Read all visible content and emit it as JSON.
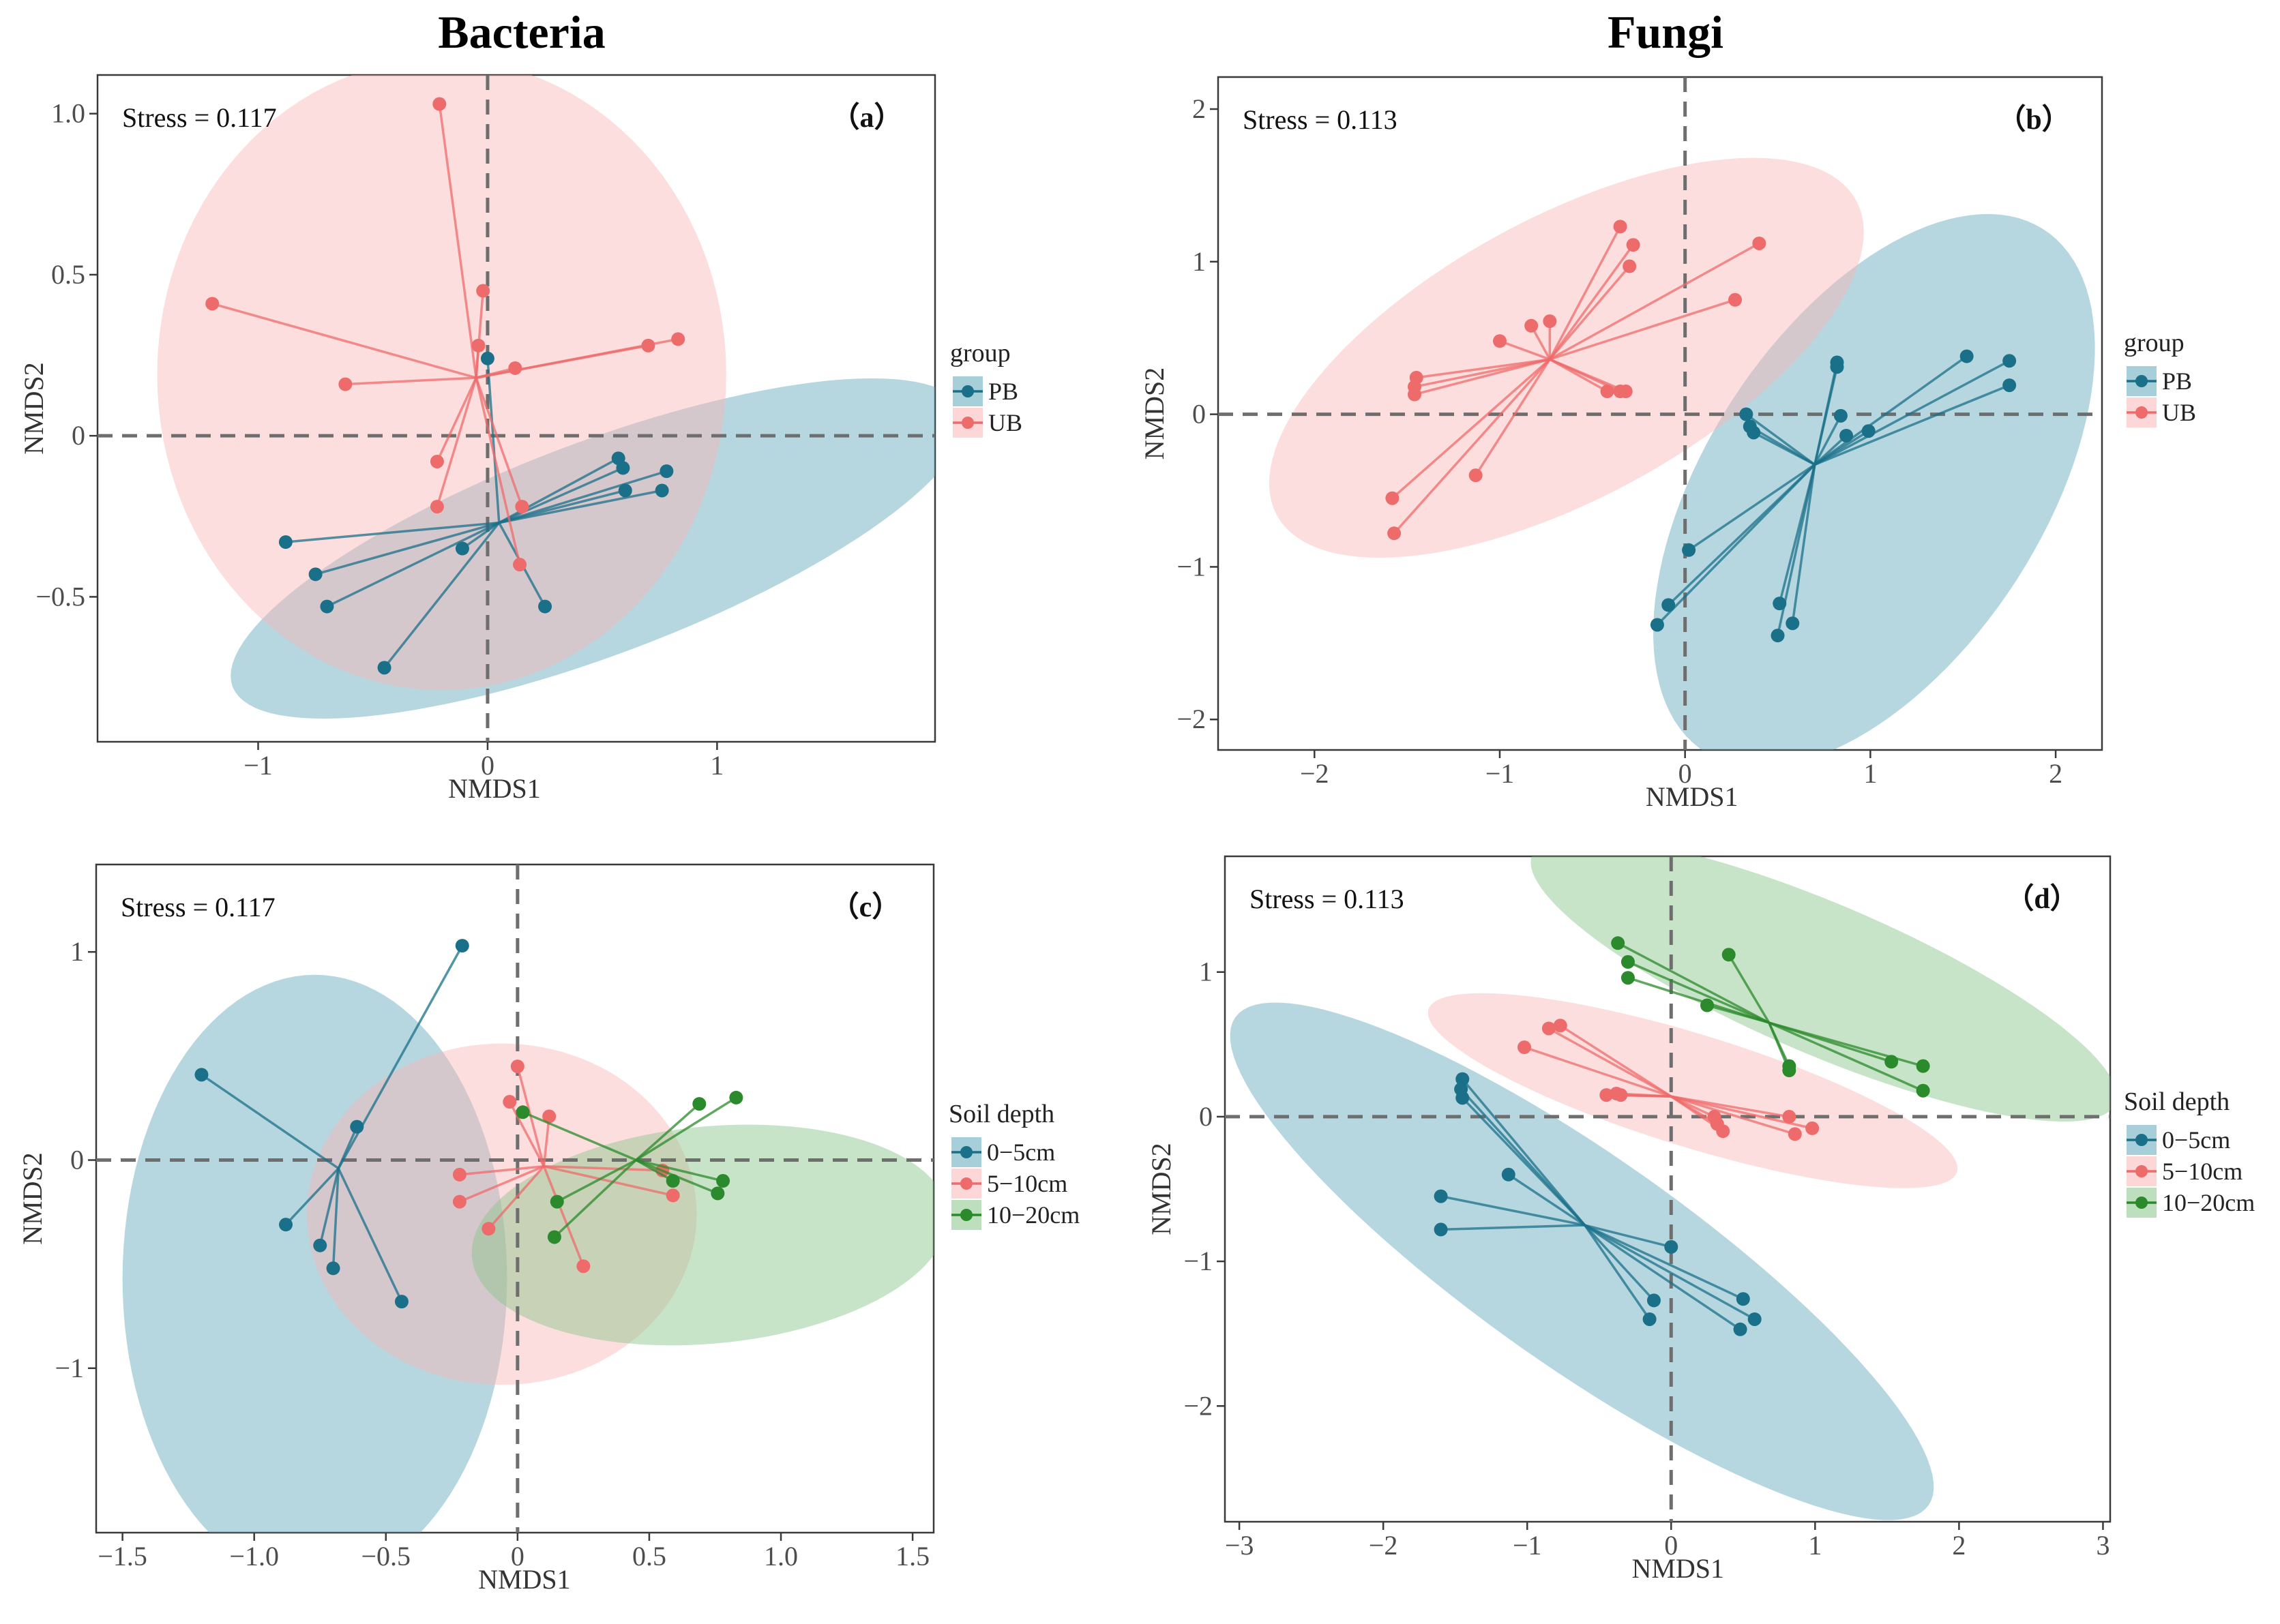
{
  "titles": {
    "left": "Bacteria",
    "right": "Fungi"
  },
  "chart_data": [
    {
      "id": "a",
      "type": "scatter",
      "tag": "（a）",
      "stress": "Stress = 0.117",
      "xlabel": "NMDS1",
      "ylabel": "NMDS2",
      "xlim": [
        -1.7,
        1.95
      ],
      "ylim": [
        -0.95,
        1.12
      ],
      "xticks": [
        -1,
        0,
        1
      ],
      "xtick_labels": [
        "−1",
        "0",
        "1"
      ],
      "yticks": [
        -0.5,
        0,
        0.5,
        1.0
      ],
      "ytick_labels": [
        "−0.5",
        "0",
        "0.5",
        "1.0"
      ],
      "legend": {
        "title": "group",
        "position": "right"
      },
      "groups": [
        {
          "name": "PB",
          "color": "#1b7089",
          "fill": "#5ea7ba",
          "ellipse": {
            "center": [
              0.48,
              -0.35
            ],
            "rx": 1.65,
            "ry": 0.34,
            "angle_deg": 14.5
          },
          "centroid": [
            0.05,
            -0.27
          ],
          "points": [
            [
              0.0,
              0.24
            ],
            [
              0.57,
              -0.07
            ],
            [
              0.59,
              -0.1
            ],
            [
              0.78,
              -0.11
            ],
            [
              0.6,
              -0.17
            ],
            [
              0.76,
              -0.17
            ],
            [
              -0.88,
              -0.33
            ],
            [
              -0.75,
              -0.43
            ],
            [
              -0.7,
              -0.53
            ],
            [
              -0.11,
              -0.35
            ],
            [
              0.25,
              -0.53
            ],
            [
              -0.45,
              -0.72
            ]
          ]
        },
        {
          "name": "UB",
          "color": "#ee6b6b",
          "fill": "#fbb6b6",
          "ellipse": {
            "center": [
              -0.2,
              0.19
            ],
            "rx": 1.24,
            "ry": 0.98,
            "angle_deg": 0
          },
          "centroid": [
            -0.05,
            0.18
          ],
          "points": [
            [
              -0.21,
              1.03
            ],
            [
              -0.02,
              0.45
            ],
            [
              -1.2,
              0.41
            ],
            [
              -0.04,
              0.28
            ],
            [
              0.7,
              0.28
            ],
            [
              0.83,
              0.3
            ],
            [
              0.12,
              0.21
            ],
            [
              -0.62,
              0.16
            ],
            [
              -0.22,
              -0.08
            ],
            [
              -0.22,
              -0.22
            ],
            [
              0.15,
              -0.22
            ],
            [
              0.14,
              -0.4
            ]
          ]
        }
      ]
    },
    {
      "id": "b",
      "type": "scatter",
      "tag": "（b）",
      "stress": "Stress = 0.113",
      "xlabel": "NMDS1",
      "ylabel": "NMDS2",
      "xlim": [
        -2.52,
        2.25
      ],
      "ylim": [
        -2.2,
        2.21
      ],
      "xticks": [
        -2,
        -1,
        0,
        1,
        2
      ],
      "xtick_labels": [
        "−2",
        "−1",
        "0",
        "1",
        "2"
      ],
      "yticks": [
        -2,
        -1,
        0,
        1,
        2
      ],
      "ytick_labels": [
        "−2",
        "−1",
        "0",
        "1",
        "2"
      ],
      "legend": {
        "title": "group",
        "position": "right"
      },
      "groups": [
        {
          "name": "PB",
          "color": "#1b7089",
          "fill": "#5ea7ba",
          "ellipse": {
            "center": [
              1.02,
              -0.5
            ],
            "rx": 1.95,
            "ry": 0.95,
            "angle_deg": 65
          },
          "centroid": [
            0.7,
            -0.33
          ],
          "points": [
            [
              0.82,
              0.34
            ],
            [
              0.82,
              0.31
            ],
            [
              1.52,
              0.38
            ],
            [
              1.75,
              0.35
            ],
            [
              1.75,
              0.19
            ],
            [
              0.33,
              0.0
            ],
            [
              0.35,
              -0.08
            ],
            [
              0.37,
              -0.12
            ],
            [
              0.84,
              -0.01
            ],
            [
              0.87,
              -0.14
            ],
            [
              0.99,
              -0.11
            ],
            [
              0.02,
              -0.89
            ],
            [
              -0.09,
              -1.25
            ],
            [
              -0.15,
              -1.38
            ],
            [
              0.51,
              -1.24
            ],
            [
              0.5,
              -1.45
            ],
            [
              0.58,
              -1.37
            ]
          ]
        },
        {
          "name": "UB",
          "color": "#ee6b6b",
          "fill": "#fbb6b6",
          "ellipse": {
            "center": [
              -0.64,
              0.37
            ],
            "rx": 1.88,
            "ry": 0.87,
            "angle_deg": 36
          },
          "centroid": [
            -0.73,
            0.36
          ],
          "points": [
            [
              -0.35,
              1.23
            ],
            [
              -0.28,
              1.11
            ],
            [
              -0.3,
              0.97
            ],
            [
              0.4,
              1.12
            ],
            [
              0.27,
              0.75
            ],
            [
              -0.83,
              0.58
            ],
            [
              -0.73,
              0.61
            ],
            [
              -1.0,
              0.48
            ],
            [
              -1.45,
              0.24
            ],
            [
              -1.46,
              0.18
            ],
            [
              -1.46,
              0.13
            ],
            [
              -0.42,
              0.15
            ],
            [
              -0.35,
              0.15
            ],
            [
              -0.32,
              0.15
            ],
            [
              -1.13,
              -0.4
            ],
            [
              -1.58,
              -0.55
            ],
            [
              -1.57,
              -0.78
            ]
          ]
        }
      ]
    },
    {
      "id": "c",
      "type": "scatter",
      "tag": "（c）",
      "stress": "Stress = 0.117",
      "xlabel": "NMDS1",
      "ylabel": "NMDS2",
      "xlim": [
        -1.6,
        1.58
      ],
      "ylim": [
        -1.79,
        1.42
      ],
      "xticks": [
        -1.5,
        -1.0,
        -0.5,
        0,
        0.5,
        1.0,
        1.5
      ],
      "xtick_labels": [
        "−1.5",
        "−1.0",
        "−0.5",
        "0",
        "0.5",
        "1.0",
        "1.5"
      ],
      "yticks": [
        -1,
        0,
        1
      ],
      "ytick_labels": [
        "−1",
        "0",
        "1"
      ],
      "legend": {
        "title": "Soil depth",
        "position": "right"
      },
      "groups": [
        {
          "name": "0−5cm",
          "color": "#1b7089",
          "fill": "#5ea7ba",
          "ellipse": {
            "center": [
              -0.77,
              -0.57
            ],
            "rx": 0.73,
            "ry": 1.46,
            "angle_deg": 0
          },
          "centroid": [
            -0.68,
            -0.04
          ],
          "points": [
            [
              -0.21,
              1.03
            ],
            [
              -1.2,
              0.41
            ],
            [
              -0.61,
              0.16
            ],
            [
              -0.88,
              -0.31
            ],
            [
              -0.75,
              -0.41
            ],
            [
              -0.7,
              -0.52
            ],
            [
              -0.44,
              -0.68
            ]
          ]
        },
        {
          "name": "5−10cm",
          "color": "#ee6b6b",
          "fill": "#fbb6b6",
          "ellipse": {
            "center": [
              -0.06,
              -0.26
            ],
            "rx": 0.74,
            "ry": 0.82,
            "angle_deg": 0
          },
          "centroid": [
            0.1,
            -0.03
          ],
          "points": [
            [
              0.0,
              0.45
            ],
            [
              -0.03,
              0.28
            ],
            [
              0.12,
              0.21
            ],
            [
              -0.22,
              -0.07
            ],
            [
              -0.22,
              -0.2
            ],
            [
              0.55,
              -0.05
            ],
            [
              0.59,
              -0.17
            ],
            [
              -0.11,
              -0.33
            ],
            [
              0.25,
              -0.51
            ]
          ]
        },
        {
          "name": "10−20cm",
          "color": "#2b8a2b",
          "fill": "#86c486",
          "ellipse": {
            "center": [
              0.73,
              -0.36
            ],
            "rx": 0.91,
            "ry": 0.52,
            "angle_deg": 8
          },
          "centroid": [
            0.45,
            0.0
          ],
          "points": [
            [
              0.69,
              0.27
            ],
            [
              0.83,
              0.3
            ],
            [
              0.02,
              0.23
            ],
            [
              0.59,
              -0.1
            ],
            [
              0.78,
              -0.1
            ],
            [
              0.76,
              -0.16
            ],
            [
              0.15,
              -0.2
            ],
            [
              0.14,
              -0.37
            ]
          ]
        }
      ]
    },
    {
      "id": "d",
      "type": "scatter",
      "tag": "（d）",
      "stress": "Stress = 0.113",
      "xlabel": "NMDS1",
      "ylabel": "NMDS2",
      "xlim": [
        -3.1,
        3.05
      ],
      "ylim": [
        -2.8,
        1.8
      ],
      "xticks": [
        -3,
        -2,
        -1,
        0,
        1,
        2,
        3
      ],
      "xtick_labels": [
        "−3",
        "−2",
        "−1",
        "0",
        "1",
        "2",
        "3"
      ],
      "yticks": [
        -2,
        -1,
        0,
        1
      ],
      "ytick_labels": [
        "−2",
        "−1",
        "0",
        "1"
      ],
      "legend": {
        "title": "Soil depth",
        "position": "right"
      },
      "groups": [
        {
          "name": "0−5cm",
          "color": "#1b7089",
          "fill": "#5ea7ba",
          "ellipse": {
            "center": [
              -0.62,
              -1.0
            ],
            "rx": 2.94,
            "ry": 0.73,
            "angle_deg": -35
          },
          "centroid": [
            -0.6,
            -0.75
          ],
          "points": [
            [
              -1.45,
              0.26
            ],
            [
              -1.46,
              0.19
            ],
            [
              -1.45,
              0.13
            ],
            [
              -1.13,
              -0.4
            ],
            [
              -1.6,
              -0.55
            ],
            [
              -1.6,
              -0.78
            ],
            [
              0.0,
              -0.9
            ],
            [
              -0.12,
              -1.27
            ],
            [
              -0.15,
              -1.4
            ],
            [
              0.5,
              -1.26
            ],
            [
              0.58,
              -1.4
            ],
            [
              0.48,
              -1.47
            ]
          ]
        },
        {
          "name": "5−10cm",
          "color": "#ee6b6b",
          "fill": "#fbb6b6",
          "ellipse": {
            "center": [
              0.15,
              0.18
            ],
            "rx": 1.92,
            "ry": 0.39,
            "angle_deg": -17
          },
          "centroid": [
            0.0,
            0.14
          ],
          "points": [
            [
              -0.85,
              0.61
            ],
            [
              -0.77,
              0.63
            ],
            [
              -1.02,
              0.48
            ],
            [
              -0.45,
              0.15
            ],
            [
              -0.38,
              0.16
            ],
            [
              -0.35,
              0.15
            ],
            [
              0.3,
              0.0
            ],
            [
              0.32,
              -0.05
            ],
            [
              0.36,
              -0.1
            ],
            [
              0.82,
              0.0
            ],
            [
              0.86,
              -0.12
            ],
            [
              0.98,
              -0.08
            ]
          ]
        },
        {
          "name": "10−20cm",
          "color": "#2b8a2b",
          "fill": "#86c486",
          "ellipse": {
            "center": [
              1.06,
              0.95
            ],
            "rx": 2.2,
            "ry": 0.52,
            "angle_deg": -23
          },
          "centroid": [
            0.68,
            0.65
          ],
          "points": [
            [
              -0.37,
              1.2
            ],
            [
              -0.3,
              1.07
            ],
            [
              -0.3,
              0.96
            ],
            [
              0.4,
              1.12
            ],
            [
              0.25,
              0.77
            ],
            [
              0.82,
              0.35
            ],
            [
              0.82,
              0.32
            ],
            [
              1.53,
              0.38
            ],
            [
              1.75,
              0.35
            ],
            [
              1.75,
              0.18
            ]
          ]
        }
      ]
    }
  ]
}
